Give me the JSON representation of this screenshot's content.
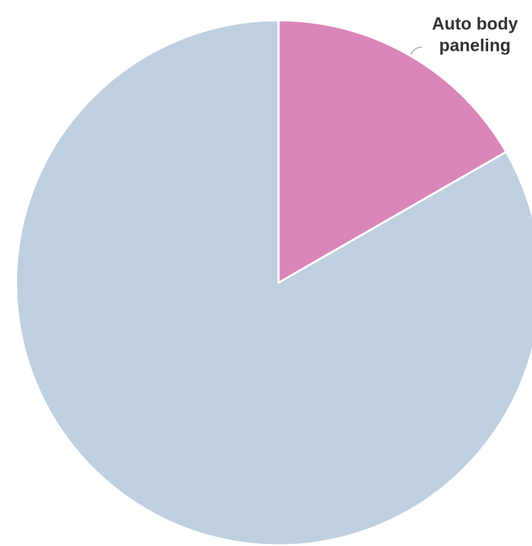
{
  "chart_data": {
    "type": "pie",
    "title": "",
    "slices": [
      {
        "label": "Auto body paneling",
        "label_lines": [
          "Auto body",
          "paneling"
        ],
        "value": 16.7,
        "color": "#da86b8",
        "labeled": true
      },
      {
        "label": "",
        "label_lines": [],
        "value": 83.3,
        "color": "#bfd0e0",
        "labeled": false
      }
    ],
    "start_angle_deg": 0,
    "direction": "clockwise",
    "legend": "none"
  }
}
